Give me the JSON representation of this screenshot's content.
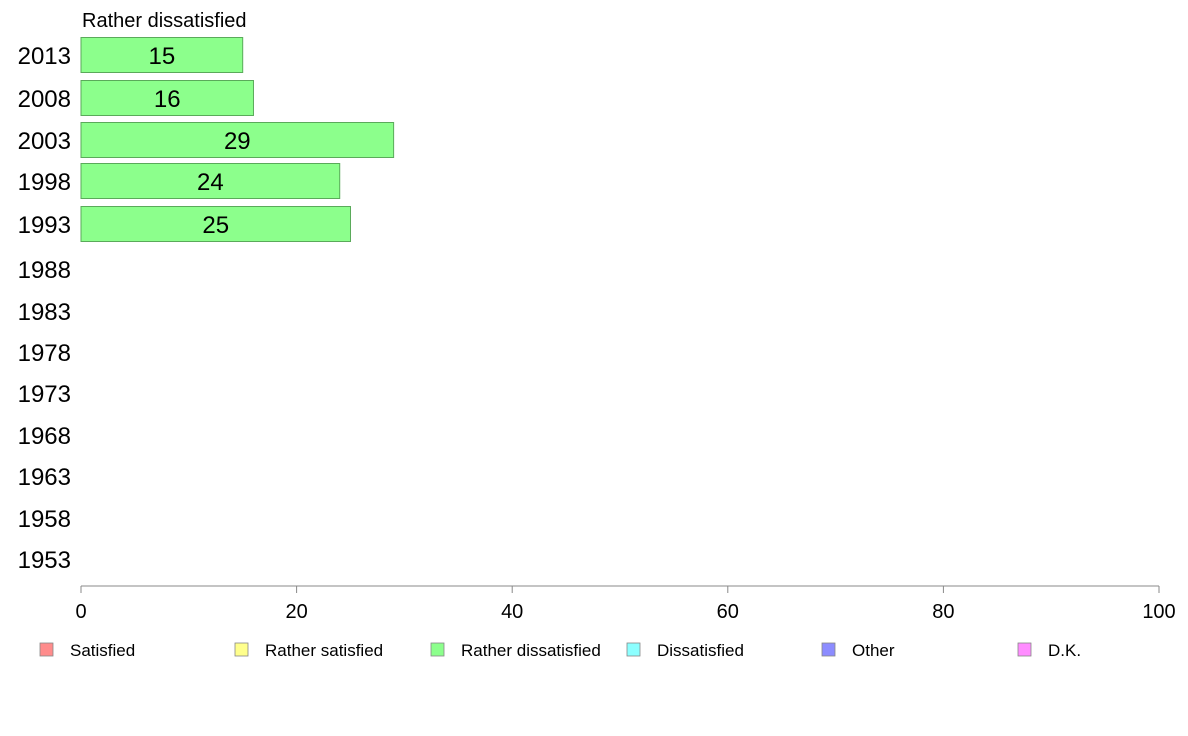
{
  "chart_data": {
    "type": "bar",
    "orientation": "horizontal",
    "title": "Rather dissatisfied",
    "categories": [
      "2013",
      "2008",
      "2003",
      "1998",
      "1993",
      "1988",
      "1983",
      "1978",
      "1973",
      "1968",
      "1963",
      "1958",
      "1953"
    ],
    "series": [
      {
        "name": "Rather dissatisfied",
        "values": [
          15,
          16,
          29,
          24,
          25,
          null,
          null,
          null,
          null,
          null,
          null,
          null,
          null
        ]
      }
    ],
    "bar_labels": [
      "15",
      "16",
      "29",
      "24",
      "25"
    ],
    "xlim": [
      0,
      100
    ],
    "xticks": [
      "0",
      "20",
      "40",
      "60",
      "80",
      "100"
    ],
    "grid": false,
    "legend_position": "bottom",
    "legend": [
      {
        "label": "Satisfied",
        "color": "#ff8c8c"
      },
      {
        "label": "Rather satisfied",
        "color": "#ffff8c"
      },
      {
        "label": "Rather dissatisfied",
        "color": "#8cff8c"
      },
      {
        "label": "Dissatisfied",
        "color": "#8cffff"
      },
      {
        "label": "Other",
        "color": "#8c8cff"
      },
      {
        "label": "D.K.",
        "color": "#ff8cff"
      }
    ],
    "bar_color": "#8cff8c",
    "bar_stroke": "#5aaa5a"
  }
}
